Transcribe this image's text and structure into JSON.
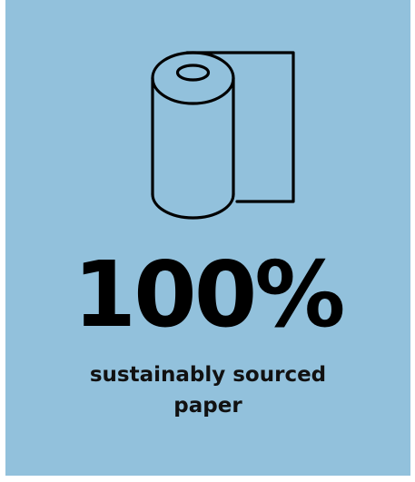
{
  "stat": {
    "value": "100%",
    "caption_line1": "sustainably sourced",
    "caption_line2": "paper"
  },
  "icon": {
    "name": "paper-roll-icon"
  },
  "colors": {
    "background": "#92c1dc",
    "text": "#000000"
  }
}
